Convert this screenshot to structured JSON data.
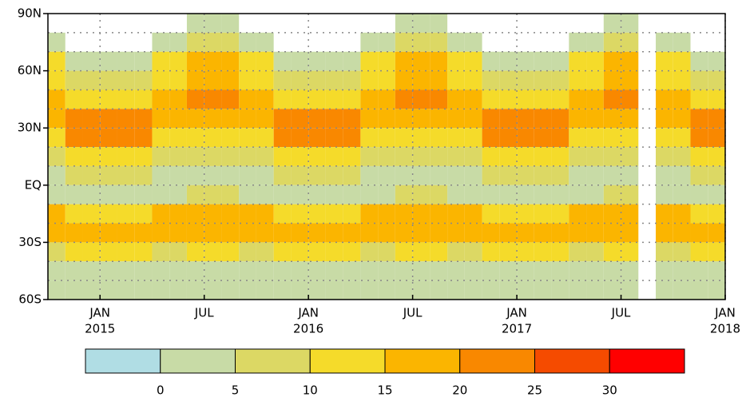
{
  "chart_data": {
    "type": "heatmap",
    "x": [
      "2014-10",
      "2014-11",
      "2014-12",
      "2015-01",
      "2015-02",
      "2015-03",
      "2015-04",
      "2015-05",
      "2015-06",
      "2015-07",
      "2015-08",
      "2015-09",
      "2015-10",
      "2015-11",
      "2015-12",
      "2016-01",
      "2016-02",
      "2016-03",
      "2016-04",
      "2016-05",
      "2016-06",
      "2016-07",
      "2016-08",
      "2016-09",
      "2016-10",
      "2016-11",
      "2016-12",
      "2017-01",
      "2017-02",
      "2017-03",
      "2017-04",
      "2017-05",
      "2017-06",
      "2017-07",
      "2017-08",
      "2017-09",
      "2017-10",
      "2017-11",
      "2017-12"
    ],
    "xlim": [
      "2014-10",
      "2018-01"
    ],
    "xticks": [
      {
        "value": "2015-01",
        "label": "JAN",
        "year": "2015"
      },
      {
        "value": "2015-07",
        "label": "JUL"
      },
      {
        "value": "2016-01",
        "label": "JAN",
        "year": "2016"
      },
      {
        "value": "2016-07",
        "label": "JUL"
      },
      {
        "value": "2017-01",
        "label": "JAN",
        "year": "2017"
      },
      {
        "value": "2017-07",
        "label": "JUL"
      },
      {
        "value": "2018-01",
        "label": "JAN",
        "year": "2018"
      }
    ],
    "y_bins": [
      90,
      80,
      70,
      60,
      50,
      40,
      30,
      20,
      10,
      0,
      -10,
      -20,
      -30,
      -40,
      -50,
      -60
    ],
    "ylim": [
      -60,
      90
    ],
    "yticks": [
      {
        "value": 90,
        "label": "90N"
      },
      {
        "value": 60,
        "label": "60N"
      },
      {
        "value": 30,
        "label": "30N"
      },
      {
        "value": 0,
        "label": "EQ"
      },
      {
        "value": -30,
        "label": "30S"
      },
      {
        "value": -60,
        "label": "60S"
      }
    ],
    "grid": true,
    "z": [
      [
        null,
        null,
        null,
        null,
        null,
        null,
        null,
        null,
        3,
        3,
        3,
        null,
        null,
        null,
        null,
        null,
        null,
        null,
        null,
        null,
        3,
        3,
        3,
        null,
        null,
        null,
        null,
        null,
        null,
        null,
        null,
        null,
        3,
        3,
        null,
        null,
        null,
        null,
        null
      ],
      [
        3,
        null,
        null,
        null,
        null,
        null,
        3,
        3,
        6,
        6,
        6,
        3,
        3,
        null,
        null,
        null,
        null,
        null,
        3,
        3,
        6,
        6,
        6,
        3,
        3,
        null,
        null,
        null,
        null,
        null,
        3,
        3,
        6,
        6,
        null,
        3,
        3,
        null,
        null
      ],
      [
        10,
        2,
        2,
        2,
        2,
        2,
        10,
        10,
        16,
        16,
        16,
        10,
        10,
        2,
        2,
        2,
        2,
        2,
        10,
        10,
        16,
        16,
        16,
        10,
        10,
        2,
        2,
        2,
        2,
        2,
        10,
        10,
        16,
        16,
        null,
        10,
        10,
        2,
        2
      ],
      [
        14,
        6,
        6,
        6,
        6,
        6,
        14,
        14,
        18,
        18,
        18,
        14,
        14,
        6,
        6,
        6,
        6,
        6,
        14,
        14,
        18,
        18,
        18,
        14,
        14,
        6,
        6,
        6,
        6,
        6,
        14,
        14,
        18,
        18,
        null,
        14,
        14,
        6,
        6
      ],
      [
        18,
        14,
        14,
        14,
        14,
        14,
        18,
        18,
        22,
        22,
        22,
        18,
        18,
        14,
        14,
        14,
        14,
        14,
        18,
        18,
        22,
        22,
        22,
        18,
        18,
        14,
        14,
        14,
        14,
        14,
        18,
        18,
        22,
        22,
        null,
        18,
        18,
        14,
        14
      ],
      [
        18,
        20,
        20,
        20,
        20,
        20,
        18,
        18,
        18,
        18,
        18,
        18,
        18,
        20,
        20,
        20,
        20,
        20,
        18,
        18,
        18,
        18,
        18,
        18,
        18,
        20,
        20,
        20,
        20,
        20,
        18,
        18,
        18,
        18,
        null,
        18,
        18,
        20,
        20
      ],
      [
        14,
        20,
        20,
        20,
        20,
        20,
        14,
        14,
        10,
        10,
        10,
        14,
        14,
        20,
        20,
        20,
        20,
        20,
        14,
        14,
        10,
        10,
        10,
        14,
        14,
        20,
        20,
        20,
        20,
        20,
        14,
        14,
        10,
        10,
        null,
        14,
        14,
        20,
        20
      ],
      [
        8,
        12,
        12,
        12,
        12,
        12,
        8,
        8,
        5,
        5,
        5,
        8,
        8,
        12,
        12,
        12,
        12,
        12,
        8,
        8,
        5,
        5,
        5,
        8,
        8,
        12,
        12,
        12,
        12,
        12,
        8,
        8,
        5,
        5,
        null,
        8,
        8,
        12,
        12
      ],
      [
        4,
        5,
        5,
        5,
        5,
        5,
        4,
        4,
        4,
        4,
        4,
        4,
        4,
        5,
        5,
        5,
        5,
        5,
        4,
        4,
        4,
        4,
        4,
        4,
        4,
        5,
        5,
        5,
        5,
        5,
        4,
        4,
        4,
        4,
        null,
        4,
        4,
        5,
        5
      ],
      [
        4,
        4,
        4,
        4,
        4,
        4,
        4,
        4,
        5,
        5,
        5,
        4,
        4,
        4,
        4,
        4,
        4,
        4,
        4,
        4,
        5,
        5,
        5,
        4,
        4,
        4,
        4,
        4,
        4,
        4,
        4,
        4,
        5,
        5,
        null,
        4,
        4,
        4,
        4
      ],
      [
        15,
        14,
        14,
        14,
        14,
        14,
        15,
        15,
        18,
        18,
        18,
        15,
        15,
        14,
        14,
        14,
        14,
        14,
        15,
        15,
        18,
        18,
        18,
        15,
        15,
        14,
        14,
        14,
        14,
        14,
        15,
        15,
        18,
        18,
        null,
        15,
        15,
        14,
        14
      ],
      [
        16,
        17,
        17,
        17,
        17,
        17,
        16,
        16,
        18,
        18,
        18,
        16,
        16,
        17,
        17,
        17,
        17,
        17,
        16,
        16,
        18,
        18,
        18,
        16,
        16,
        17,
        17,
        17,
        17,
        17,
        16,
        16,
        18,
        18,
        null,
        16,
        16,
        17,
        17
      ],
      [
        9,
        10,
        10,
        10,
        10,
        10,
        9,
        9,
        10,
        10,
        10,
        9,
        9,
        10,
        10,
        10,
        10,
        10,
        9,
        9,
        10,
        10,
        10,
        9,
        9,
        10,
        10,
        10,
        10,
        10,
        9,
        9,
        10,
        10,
        null,
        9,
        9,
        10,
        10
      ],
      [
        3,
        4,
        4,
        4,
        4,
        4,
        3,
        3,
        4,
        4,
        4,
        3,
        3,
        4,
        4,
        4,
        4,
        4,
        3,
        3,
        4,
        4,
        4,
        3,
        3,
        4,
        4,
        4,
        4,
        4,
        3,
        3,
        4,
        4,
        null,
        3,
        3,
        4,
        4
      ],
      [
        2,
        2,
        2,
        2,
        2,
        2,
        2,
        2,
        2,
        2,
        2,
        2,
        2,
        2,
        2,
        2,
        2,
        2,
        2,
        2,
        2,
        2,
        2,
        2,
        2,
        2,
        2,
        2,
        2,
        2,
        2,
        2,
        2,
        2,
        null,
        2,
        2,
        2,
        2
      ]
    ],
    "colorbar": {
      "colors": [
        "#b0dde4",
        "#c8dba6",
        "#dcd864",
        "#f5db2a",
        "#fbb500",
        "#f98800",
        "#f54b00",
        "#ff0000"
      ],
      "ticks": [
        0,
        5,
        10,
        15,
        20,
        25,
        30
      ]
    }
  }
}
